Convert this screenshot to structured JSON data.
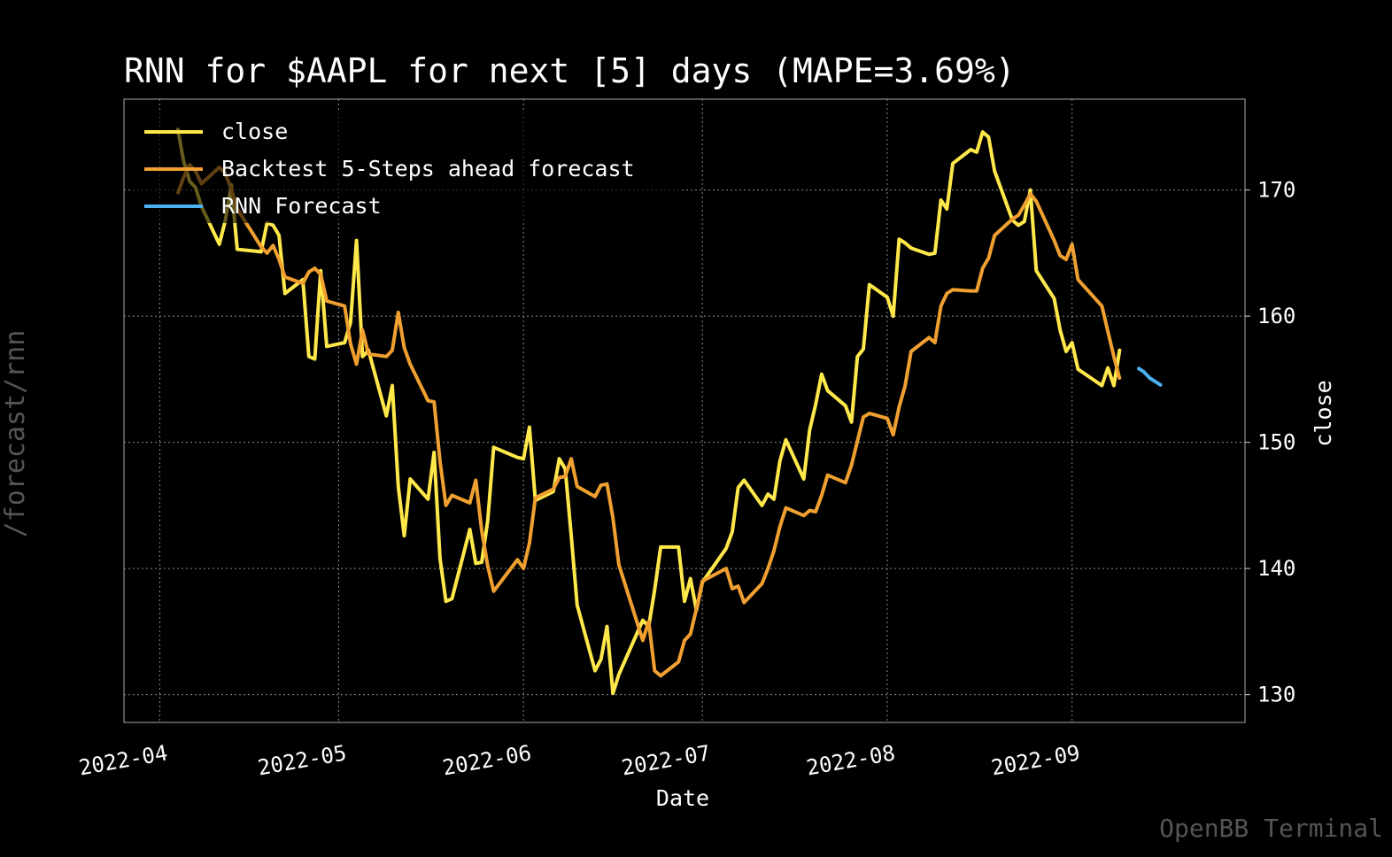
{
  "chart_data": {
    "type": "line",
    "title": "RNN for $AAPL for next [5] days (MAPE=3.69%)",
    "xlabel": "Date",
    "ylabel": "close",
    "x_ticks": [
      "2022-04",
      "2022-05",
      "2022-06",
      "2022-07",
      "2022-08",
      "2022-09"
    ],
    "y_ticks": [
      130,
      140,
      150,
      160,
      170
    ],
    "ylim": [
      127.8,
      177.2
    ],
    "xlim": [
      "2022-03-26",
      "2022-09-30"
    ],
    "grid": true,
    "legend_position": "top-left",
    "side_label": "/forecast/rnn",
    "watermark": "OpenBB Terminal",
    "series": [
      {
        "name": "close",
        "color": "#ffe84a",
        "points": [
          [
            "2022-04-04",
            174.9
          ],
          [
            "2022-04-05",
            172.3
          ],
          [
            "2022-04-06",
            170.7
          ],
          [
            "2022-04-07",
            170.2
          ],
          [
            "2022-04-08",
            168.7
          ],
          [
            "2022-04-11",
            165.7
          ],
          [
            "2022-04-12",
            167.6
          ],
          [
            "2022-04-13",
            170.4
          ],
          [
            "2022-04-14",
            165.3
          ],
          [
            "2022-04-18",
            165.1
          ],
          [
            "2022-04-19",
            167.4
          ],
          [
            "2022-04-20",
            167.2
          ],
          [
            "2022-04-21",
            166.4
          ],
          [
            "2022-04-22",
            161.8
          ],
          [
            "2022-04-25",
            162.9
          ],
          [
            "2022-04-26",
            156.8
          ],
          [
            "2022-04-27",
            156.6
          ],
          [
            "2022-04-28",
            163.6
          ],
          [
            "2022-04-29",
            157.6
          ],
          [
            "2022-05-02",
            157.9
          ],
          [
            "2022-05-03",
            159.5
          ],
          [
            "2022-05-04",
            166.0
          ],
          [
            "2022-05-05",
            156.8
          ],
          [
            "2022-05-06",
            157.3
          ],
          [
            "2022-05-09",
            152.1
          ],
          [
            "2022-05-10",
            154.5
          ],
          [
            "2022-05-11",
            146.5
          ],
          [
            "2022-05-12",
            142.6
          ],
          [
            "2022-05-13",
            147.1
          ],
          [
            "2022-05-16",
            145.5
          ],
          [
            "2022-05-17",
            149.2
          ],
          [
            "2022-05-18",
            140.8
          ],
          [
            "2022-05-19",
            137.4
          ],
          [
            "2022-05-20",
            137.6
          ],
          [
            "2022-05-23",
            143.1
          ],
          [
            "2022-05-24",
            140.4
          ],
          [
            "2022-05-25",
            140.5
          ],
          [
            "2022-05-26",
            143.8
          ],
          [
            "2022-05-27",
            149.6
          ],
          [
            "2022-05-31",
            148.8
          ],
          [
            "2022-06-01",
            148.7
          ],
          [
            "2022-06-02",
            151.2
          ],
          [
            "2022-06-03",
            145.4
          ],
          [
            "2022-06-06",
            146.1
          ],
          [
            "2022-06-07",
            148.7
          ],
          [
            "2022-06-08",
            147.9
          ],
          [
            "2022-06-09",
            142.6
          ],
          [
            "2022-06-10",
            137.1
          ],
          [
            "2022-06-13",
            131.9
          ],
          [
            "2022-06-14",
            132.8
          ],
          [
            "2022-06-15",
            135.4
          ],
          [
            "2022-06-16",
            130.1
          ],
          [
            "2022-06-17",
            131.6
          ],
          [
            "2022-06-21",
            135.9
          ],
          [
            "2022-06-22",
            135.4
          ],
          [
            "2022-06-23",
            138.3
          ],
          [
            "2022-06-24",
            141.7
          ],
          [
            "2022-06-27",
            141.7
          ],
          [
            "2022-06-28",
            137.4
          ],
          [
            "2022-06-29",
            139.2
          ],
          [
            "2022-06-30",
            136.7
          ],
          [
            "2022-07-01",
            138.9
          ],
          [
            "2022-07-05",
            141.6
          ],
          [
            "2022-07-06",
            142.9
          ],
          [
            "2022-07-07",
            146.4
          ],
          [
            "2022-07-08",
            147.0
          ],
          [
            "2022-07-11",
            145.0
          ],
          [
            "2022-07-12",
            145.9
          ],
          [
            "2022-07-13",
            145.5
          ],
          [
            "2022-07-14",
            148.5
          ],
          [
            "2022-07-15",
            150.2
          ],
          [
            "2022-07-18",
            147.1
          ],
          [
            "2022-07-19",
            151.0
          ],
          [
            "2022-07-20",
            153.0
          ],
          [
            "2022-07-21",
            155.4
          ],
          [
            "2022-07-22",
            154.1
          ],
          [
            "2022-07-25",
            152.9
          ],
          [
            "2022-07-26",
            151.6
          ],
          [
            "2022-07-27",
            156.8
          ],
          [
            "2022-07-28",
            157.4
          ],
          [
            "2022-07-29",
            162.5
          ],
          [
            "2022-08-01",
            161.5
          ],
          [
            "2022-08-02",
            160.0
          ],
          [
            "2022-08-03",
            166.1
          ],
          [
            "2022-08-04",
            165.8
          ],
          [
            "2022-08-05",
            165.4
          ],
          [
            "2022-08-08",
            164.9
          ],
          [
            "2022-08-09",
            165.0
          ],
          [
            "2022-08-10",
            169.2
          ],
          [
            "2022-08-11",
            168.5
          ],
          [
            "2022-08-12",
            172.1
          ],
          [
            "2022-08-15",
            173.2
          ],
          [
            "2022-08-16",
            173.0
          ],
          [
            "2022-08-17",
            174.6
          ],
          [
            "2022-08-18",
            174.2
          ],
          [
            "2022-08-19",
            171.5
          ],
          [
            "2022-08-22",
            167.6
          ],
          [
            "2022-08-23",
            167.2
          ],
          [
            "2022-08-24",
            167.5
          ],
          [
            "2022-08-25",
            170.0
          ],
          [
            "2022-08-26",
            163.6
          ],
          [
            "2022-08-29",
            161.4
          ],
          [
            "2022-08-30",
            158.9
          ],
          [
            "2022-08-31",
            157.2
          ],
          [
            "2022-09-01",
            157.9
          ],
          [
            "2022-09-02",
            155.8
          ],
          [
            "2022-09-06",
            154.5
          ],
          [
            "2022-09-07",
            155.9
          ],
          [
            "2022-09-08",
            154.5
          ],
          [
            "2022-09-09",
            157.4
          ]
        ]
      },
      {
        "name": "Backtest 5-Steps ahead forecast",
        "color": "#f0a030",
        "points": [
          [
            "2022-04-04",
            169.7
          ],
          [
            "2022-04-05",
            171.0
          ],
          [
            "2022-04-06",
            172.0
          ],
          [
            "2022-04-07",
            171.5
          ],
          [
            "2022-04-08",
            170.5
          ],
          [
            "2022-04-11",
            171.8
          ],
          [
            "2022-04-12",
            171.3
          ],
          [
            "2022-04-13",
            170.1
          ],
          [
            "2022-04-14",
            168.5
          ],
          [
            "2022-04-18",
            165.5
          ],
          [
            "2022-04-19",
            165.0
          ],
          [
            "2022-04-20",
            165.6
          ],
          [
            "2022-04-21",
            164.5
          ],
          [
            "2022-04-22",
            163.1
          ],
          [
            "2022-04-25",
            162.6
          ],
          [
            "2022-04-26",
            163.5
          ],
          [
            "2022-04-27",
            163.8
          ],
          [
            "2022-04-28",
            163.3
          ],
          [
            "2022-04-29",
            161.2
          ],
          [
            "2022-05-02",
            160.8
          ],
          [
            "2022-05-03",
            157.8
          ],
          [
            "2022-05-04",
            156.2
          ],
          [
            "2022-05-05",
            158.9
          ],
          [
            "2022-05-06",
            157.0
          ],
          [
            "2022-05-09",
            156.8
          ],
          [
            "2022-05-10",
            157.3
          ],
          [
            "2022-05-11",
            160.3
          ],
          [
            "2022-05-12",
            157.5
          ],
          [
            "2022-05-13",
            156.2
          ],
          [
            "2022-05-16",
            153.3
          ],
          [
            "2022-05-17",
            153.2
          ],
          [
            "2022-05-18",
            148.5
          ],
          [
            "2022-05-19",
            145.0
          ],
          [
            "2022-05-20",
            145.8
          ],
          [
            "2022-05-23",
            145.2
          ],
          [
            "2022-05-24",
            147.0
          ],
          [
            "2022-05-25",
            143.0
          ],
          [
            "2022-05-26",
            140.2
          ],
          [
            "2022-05-27",
            138.2
          ],
          [
            "2022-05-31",
            140.7
          ],
          [
            "2022-06-01",
            140.0
          ],
          [
            "2022-06-02",
            142.0
          ],
          [
            "2022-06-03",
            145.6
          ],
          [
            "2022-06-06",
            146.3
          ],
          [
            "2022-06-07",
            147.2
          ],
          [
            "2022-06-08",
            147.3
          ],
          [
            "2022-06-09",
            148.7
          ],
          [
            "2022-06-10",
            146.5
          ],
          [
            "2022-06-13",
            145.7
          ],
          [
            "2022-06-14",
            146.6
          ],
          [
            "2022-06-15",
            146.7
          ],
          [
            "2022-06-16",
            144.0
          ],
          [
            "2022-06-17",
            140.3
          ],
          [
            "2022-06-21",
            134.3
          ],
          [
            "2022-06-22",
            135.8
          ],
          [
            "2022-06-23",
            131.9
          ],
          [
            "2022-06-24",
            131.5
          ],
          [
            "2022-06-27",
            132.6
          ],
          [
            "2022-06-28",
            134.3
          ],
          [
            "2022-06-29",
            134.8
          ],
          [
            "2022-06-30",
            136.8
          ],
          [
            "2022-07-01",
            139.0
          ],
          [
            "2022-07-05",
            140.0
          ],
          [
            "2022-07-06",
            138.4
          ],
          [
            "2022-07-07",
            138.6
          ],
          [
            "2022-07-08",
            137.3
          ],
          [
            "2022-07-11",
            138.8
          ],
          [
            "2022-07-12",
            140.0
          ],
          [
            "2022-07-13",
            141.4
          ],
          [
            "2022-07-14",
            143.3
          ],
          [
            "2022-07-15",
            144.8
          ],
          [
            "2022-07-18",
            144.2
          ],
          [
            "2022-07-19",
            144.6
          ],
          [
            "2022-07-20",
            144.5
          ],
          [
            "2022-07-21",
            145.8
          ],
          [
            "2022-07-22",
            147.4
          ],
          [
            "2022-07-25",
            146.8
          ],
          [
            "2022-07-26",
            148.2
          ],
          [
            "2022-07-27",
            150.1
          ],
          [
            "2022-07-28",
            152.0
          ],
          [
            "2022-07-29",
            152.3
          ],
          [
            "2022-08-01",
            151.9
          ],
          [
            "2022-08-02",
            150.6
          ],
          [
            "2022-08-03",
            152.8
          ],
          [
            "2022-08-04",
            154.5
          ],
          [
            "2022-08-05",
            157.2
          ],
          [
            "2022-08-08",
            158.3
          ],
          [
            "2022-08-09",
            157.9
          ],
          [
            "2022-08-10",
            160.8
          ],
          [
            "2022-08-11",
            161.8
          ],
          [
            "2022-08-12",
            162.1
          ],
          [
            "2022-08-15",
            162.0
          ],
          [
            "2022-08-16",
            162.0
          ],
          [
            "2022-08-17",
            163.8
          ],
          [
            "2022-08-18",
            164.6
          ],
          [
            "2022-08-19",
            166.4
          ],
          [
            "2022-08-22",
            167.7
          ],
          [
            "2022-08-23",
            168.0
          ],
          [
            "2022-08-24",
            168.8
          ],
          [
            "2022-08-25",
            169.7
          ],
          [
            "2022-08-26",
            169.1
          ],
          [
            "2022-08-29",
            166.0
          ],
          [
            "2022-08-30",
            164.8
          ],
          [
            "2022-08-31",
            164.5
          ],
          [
            "2022-09-01",
            165.7
          ],
          [
            "2022-09-02",
            162.9
          ],
          [
            "2022-09-06",
            160.8
          ],
          [
            "2022-09-07",
            158.8
          ],
          [
            "2022-09-08",
            156.8
          ],
          [
            "2022-09-09",
            155.0
          ]
        ]
      },
      {
        "name": "RNN Forecast",
        "color": "#4ab0f0",
        "points": [
          [
            "2022-09-12",
            155.9
          ],
          [
            "2022-09-13",
            155.6
          ],
          [
            "2022-09-14",
            155.1
          ],
          [
            "2022-09-15",
            154.8
          ],
          [
            "2022-09-16",
            154.5
          ]
        ]
      }
    ]
  }
}
